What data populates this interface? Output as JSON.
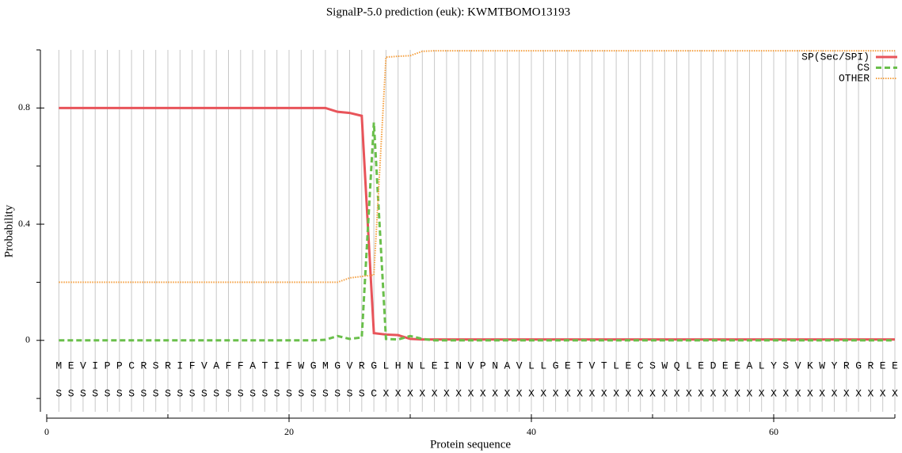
{
  "chart_data": {
    "type": "line",
    "title": "SignalP-5.0 prediction (euk):  KWMTBOMO13193",
    "x_label": "Protein sequence",
    "y_label": "Probability",
    "x": [
      1,
      2,
      3,
      4,
      5,
      6,
      7,
      8,
      9,
      10,
      11,
      12,
      13,
      14,
      15,
      16,
      17,
      18,
      19,
      20,
      21,
      22,
      23,
      24,
      25,
      26,
      27,
      28,
      29,
      30,
      31,
      32,
      33,
      34,
      35,
      36,
      37,
      38,
      39,
      40,
      41,
      42,
      43,
      44,
      45,
      46,
      47,
      48,
      49,
      50,
      51,
      52,
      53,
      54,
      55,
      56,
      57,
      58,
      59,
      60,
      61,
      62,
      63,
      64,
      65,
      66,
      67,
      68,
      69,
      70
    ],
    "sequence": [
      "M",
      "E",
      "V",
      "I",
      "P",
      "P",
      "C",
      "R",
      "S",
      "R",
      "I",
      "F",
      "V",
      "A",
      "F",
      "F",
      "A",
      "T",
      "I",
      "F",
      "W",
      "G",
      "M",
      "G",
      "V",
      "R",
      "G",
      "L",
      "H",
      "N",
      "L",
      "E",
      "I",
      "N",
      "V",
      "P",
      "N",
      "A",
      "V",
      "L",
      "L",
      "G",
      "E",
      "T",
      "V",
      "T",
      "L",
      "E",
      "C",
      "S",
      "W",
      "Q",
      "L",
      "E",
      "D",
      "E",
      "E",
      "A",
      "L",
      "Y",
      "S",
      "V",
      "K",
      "W",
      "Y",
      "R",
      "G",
      "R",
      "E",
      "E"
    ],
    "labels": [
      "S",
      "S",
      "S",
      "S",
      "S",
      "S",
      "S",
      "S",
      "S",
      "S",
      "S",
      "S",
      "S",
      "S",
      "S",
      "S",
      "S",
      "S",
      "S",
      "S",
      "S",
      "S",
      "S",
      "S",
      "S",
      "S",
      "C",
      "X",
      "X",
      "X",
      "X",
      "X",
      "X",
      "X",
      "X",
      "X",
      "X",
      "X",
      "X",
      "X",
      "X",
      "X",
      "X",
      "X",
      "X",
      "X",
      "X",
      "X",
      "X",
      "X",
      "X",
      "X",
      "X",
      "X",
      "X",
      "X",
      "X",
      "X",
      "X",
      "X",
      "X",
      "X",
      "X",
      "X",
      "X",
      "X",
      "X",
      "X",
      "X",
      "X"
    ],
    "series": [
      {
        "name": "SP(Sec/SPI)",
        "color": "#e8545a",
        "dash": "solid",
        "values": [
          0.8,
          0.8,
          0.8,
          0.8,
          0.8,
          0.8,
          0.8,
          0.8,
          0.8,
          0.8,
          0.8,
          0.8,
          0.8,
          0.8,
          0.8,
          0.8,
          0.8,
          0.8,
          0.8,
          0.8,
          0.8,
          0.8,
          0.8,
          0.787,
          0.783,
          0.773,
          0.025,
          0.02,
          0.018,
          0.005,
          0.003,
          0.003,
          0.003,
          0.003,
          0.003,
          0.003,
          0.003,
          0.003,
          0.003,
          0.003,
          0.003,
          0.003,
          0.003,
          0.003,
          0.003,
          0.003,
          0.003,
          0.003,
          0.003,
          0.003,
          0.003,
          0.003,
          0.003,
          0.003,
          0.003,
          0.003,
          0.003,
          0.003,
          0.003,
          0.003,
          0.003,
          0.003,
          0.003,
          0.003,
          0.003,
          0.003,
          0.003,
          0.003,
          0.003,
          0.003
        ]
      },
      {
        "name": "CS",
        "color": "#6abf4b",
        "dash": "dashed",
        "values": [
          0,
          0,
          0,
          0,
          0,
          0,
          0,
          0,
          0,
          0,
          0,
          0,
          0,
          0,
          0,
          0,
          0,
          0,
          0,
          0,
          0,
          0,
          0.002,
          0.015,
          0.005,
          0.01,
          0.75,
          0.005,
          0.003,
          0.015,
          0.005,
          0,
          0,
          0,
          0,
          0,
          0,
          0,
          0,
          0,
          0,
          0,
          0,
          0,
          0,
          0,
          0,
          0,
          0,
          0,
          0,
          0,
          0,
          0,
          0,
          0,
          0,
          0,
          0,
          0,
          0,
          0,
          0,
          0,
          0,
          0,
          0,
          0,
          0,
          0
        ]
      },
      {
        "name": "OTHER",
        "color": "#f5a040",
        "dash": "dotted",
        "values": [
          0.2,
          0.2,
          0.2,
          0.2,
          0.2,
          0.2,
          0.2,
          0.2,
          0.2,
          0.2,
          0.2,
          0.2,
          0.2,
          0.2,
          0.2,
          0.2,
          0.2,
          0.2,
          0.2,
          0.2,
          0.2,
          0.2,
          0.2,
          0.2,
          0.215,
          0.22,
          0.225,
          0.975,
          0.978,
          0.98,
          0.995,
          0.997,
          0.997,
          0.997,
          0.997,
          0.997,
          0.997,
          0.997,
          0.997,
          0.997,
          0.997,
          0.997,
          0.997,
          0.997,
          0.997,
          0.997,
          0.997,
          0.997,
          0.997,
          0.997,
          0.997,
          0.997,
          0.997,
          0.997,
          0.997,
          0.997,
          0.997,
          0.997,
          0.997,
          0.997,
          0.997,
          0.997,
          0.997,
          0.997,
          0.997,
          0.997,
          0.997,
          0.997,
          0.997,
          0.997
        ]
      }
    ],
    "xlim": [
      0,
      70
    ],
    "xticks": [
      0,
      20,
      40,
      60
    ],
    "xminor": [
      10,
      30,
      50,
      70
    ],
    "ylim": [
      -0.246,
      1.0
    ],
    "yticks": [
      0,
      0.4,
      0.8
    ],
    "yminor": [
      -0.2,
      0.2,
      0.6,
      1.0
    ],
    "legend": "top-right"
  }
}
